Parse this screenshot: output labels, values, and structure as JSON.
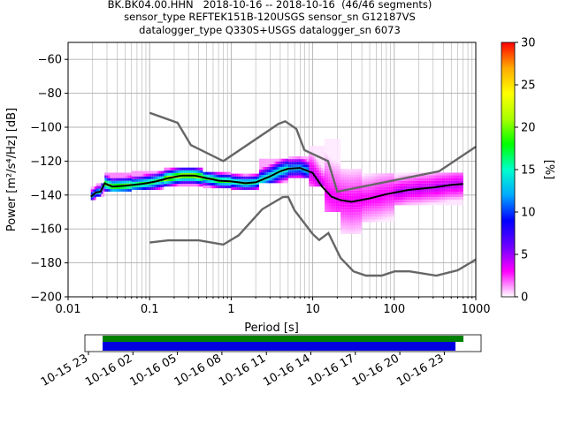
{
  "chart_data": {
    "type": "heatmap",
    "title_lines": [
      "BK.BK04.00.HHN   2018-10-16 -- 2018-10-16  (46/46 segments)",
      "sensor_type REFTEK151B-120USGS sensor_sn G12187VS",
      "datalogger_type Q330S+USGS datalogger_sn 6073"
    ],
    "xlabel": "Period [s]",
    "ylabel": "Power [m²/s⁴/Hz] [dB]",
    "x_scale": "log",
    "xlim": [
      0.01,
      1000
    ],
    "ylim": [
      -200,
      -50
    ],
    "x_ticks": [
      {
        "v": 0.01,
        "label": "0.01"
      },
      {
        "v": 0.1,
        "label": "0.1"
      },
      {
        "v": 1,
        "label": "1"
      },
      {
        "v": 10,
        "label": "10"
      },
      {
        "v": 100,
        "label": "100"
      },
      {
        "v": 1000,
        "label": "1000"
      }
    ],
    "y_ticks": [
      {
        "v": -60,
        "label": "−60"
      },
      {
        "v": -80,
        "label": "−80"
      },
      {
        "v": -100,
        "label": "−100"
      },
      {
        "v": -120,
        "label": "−120"
      },
      {
        "v": -140,
        "label": "−140"
      },
      {
        "v": -160,
        "label": "−160"
      },
      {
        "v": -180,
        "label": "−180"
      },
      {
        "v": -200,
        "label": "−200"
      }
    ],
    "grid": true,
    "colorbar": {
      "label": "[%]",
      "range": [
        0,
        30
      ],
      "ticks": [
        {
          "v": 0,
          "label": "0"
        },
        {
          "v": 5,
          "label": "5"
        },
        {
          "v": 10,
          "label": "10"
        },
        {
          "v": 15,
          "label": "15"
        },
        {
          "v": 20,
          "label": "20"
        },
        {
          "v": 25,
          "label": "25"
        },
        {
          "v": 30,
          "label": "30"
        }
      ],
      "colormap_stops": [
        "#ffffff",
        "#ff00ff",
        "#6a00ff",
        "#0000ff",
        "#00aaff",
        "#00ffcc",
        "#00ff00",
        "#aaff00",
        "#ffff00",
        "#ffaa00",
        "#ff0000"
      ]
    },
    "series": [
      {
        "name": "",
        "role": "new_high_noise_model",
        "color": "#666666",
        "points": [
          [
            0.1,
            -91.5
          ],
          [
            0.22,
            -97.4
          ],
          [
            0.32,
            -110.5
          ],
          [
            0.8,
            -120
          ],
          [
            3.8,
            -98
          ],
          [
            4.6,
            -96.5
          ],
          [
            6.3,
            -101
          ],
          [
            7.9,
            -113.5
          ],
          [
            15.4,
            -120
          ],
          [
            20,
            -138
          ],
          [
            354.8,
            -126
          ],
          [
            1000,
            -111.5
          ]
        ]
      },
      {
        "name": "",
        "role": "new_low_noise_model",
        "color": "#666666",
        "points": [
          [
            0.1,
            -168
          ],
          [
            0.17,
            -166.7
          ],
          [
            0.4,
            -166.7
          ],
          [
            0.8,
            -169.2
          ],
          [
            1.24,
            -163.7
          ],
          [
            2.4,
            -148.4
          ],
          [
            4.3,
            -141.2
          ],
          [
            5,
            -141.1
          ],
          [
            6,
            -149
          ],
          [
            10,
            -163
          ],
          [
            12,
            -166.5
          ],
          [
            15.6,
            -162.4
          ],
          [
            21.9,
            -177
          ],
          [
            31.6,
            -185
          ],
          [
            45,
            -187.5
          ],
          [
            70,
            -187.5
          ],
          [
            101,
            -185
          ],
          [
            154,
            -185
          ],
          [
            328,
            -187.5
          ],
          [
            600,
            -184.4
          ],
          [
            1000,
            -178
          ]
        ]
      },
      {
        "name": "",
        "role": "mean",
        "color": "#000000",
        "points": [
          [
            0.019,
            -141
          ],
          [
            0.022,
            -138.5
          ],
          [
            0.025,
            -138
          ],
          [
            0.028,
            -133
          ],
          [
            0.031,
            -134
          ],
          [
            0.035,
            -135
          ],
          [
            0.05,
            -134.5
          ],
          [
            0.08,
            -133.5
          ],
          [
            0.12,
            -132
          ],
          [
            0.17,
            -130
          ],
          [
            0.25,
            -128.5
          ],
          [
            0.35,
            -128.5
          ],
          [
            0.5,
            -130
          ],
          [
            0.7,
            -131.5
          ],
          [
            1,
            -132
          ],
          [
            1.5,
            -133
          ],
          [
            2,
            -132.5
          ],
          [
            3,
            -129
          ],
          [
            4,
            -126
          ],
          [
            5,
            -124.5
          ],
          [
            7,
            -124
          ],
          [
            10,
            -127
          ],
          [
            13,
            -135
          ],
          [
            17,
            -141
          ],
          [
            22,
            -143
          ],
          [
            30,
            -144
          ],
          [
            50,
            -142
          ],
          [
            80,
            -139.5
          ],
          [
            150,
            -137
          ],
          [
            300,
            -135.5
          ],
          [
            500,
            -134
          ],
          [
            700,
            -133.5
          ]
        ]
      }
    ],
    "density_bands": [
      {
        "x": [
          0.019,
          0.022
        ],
        "y": [
          -143,
          -136
        ],
        "pct": 12
      },
      {
        "x": [
          0.022,
          0.028
        ],
        "y": [
          -141,
          -134
        ],
        "pct": 14
      },
      {
        "x": [
          0.028,
          0.06
        ],
        "y": [
          -138,
          -128
        ],
        "pct": 18
      },
      {
        "x": [
          0.06,
          0.15
        ],
        "y": [
          -137,
          -127
        ],
        "pct": 16
      },
      {
        "x": [
          0.15,
          0.45
        ],
        "y": [
          -135,
          -125
        ],
        "pct": 20
      },
      {
        "x": [
          0.45,
          1
        ],
        "y": [
          -136,
          -127
        ],
        "pct": 17
      },
      {
        "x": [
          1,
          2.2
        ],
        "y": [
          -137,
          -128
        ],
        "pct": 15
      },
      {
        "x": [
          2.2,
          5
        ],
        "y": [
          -133,
          -120
        ],
        "pct": 14
      },
      {
        "x": [
          5,
          9
        ],
        "y": [
          -130,
          -118
        ],
        "pct": 12
      },
      {
        "x": [
          9,
          14
        ],
        "y": [
          -135,
          -112
        ],
        "pct": 4
      },
      {
        "x": [
          14,
          22
        ],
        "y": [
          -150,
          -108
        ],
        "pct": 3
      },
      {
        "x": [
          22,
          40
        ],
        "y": [
          -163,
          -125
        ],
        "pct": 3
      },
      {
        "x": [
          40,
          100
        ],
        "y": [
          -156,
          -128
        ],
        "pct": 3
      },
      {
        "x": [
          100,
          700
        ],
        "y": [
          -146,
          -128
        ],
        "pct": 4
      }
    ],
    "data_coverage": {
      "axis_tick_labels": [
        "10-15 23",
        "10-16 02",
        "10-16 05",
        "10-16 08",
        "10-16 11",
        "10-16 14",
        "10-16 17",
        "10-16 20",
        "10-16 23"
      ],
      "green_bar_color": "#008000",
      "blue_bar_color": "#0000e0"
    }
  }
}
